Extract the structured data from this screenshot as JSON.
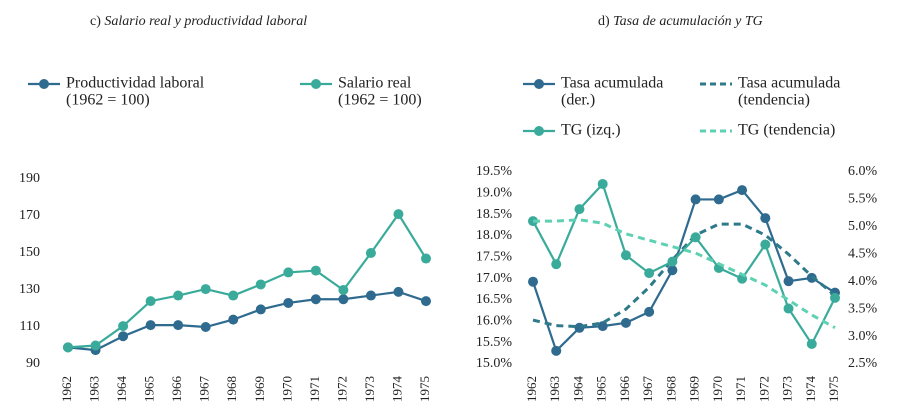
{
  "chart_data": [
    {
      "type": "line",
      "panel": "c)",
      "title": "Salario real y productividad laboral",
      "categories": [
        "1962",
        "1963",
        "1964",
        "1965",
        "1966",
        "1967",
        "1968",
        "1969",
        "1970",
        "1971",
        "1972",
        "1973",
        "1974",
        "1975"
      ],
      "ylim": [
        90,
        190
      ],
      "yticks": [
        90,
        110,
        130,
        150,
        170,
        190
      ],
      "series": [
        {
          "name": "Productividad laboral",
          "sublabel": "(1962 = 100)",
          "color": "#2f6a8f",
          "marker": "circle",
          "values": [
            99,
            97.5,
            105,
            111,
            111,
            110,
            114,
            119.5,
            123,
            125,
            125,
            127,
            129,
            124
          ]
        },
        {
          "name": "Salario real",
          "sublabel": "(1962 = 100)",
          "color": "#3aab9a",
          "marker": "circle",
          "values": [
            99,
            100,
            110.5,
            124,
            127,
            130.5,
            127,
            133,
            139.5,
            140.5,
            130,
            150,
            171,
            147
          ]
        }
      ]
    },
    {
      "type": "line",
      "panel": "d)",
      "title": "Tasa de acumulación y TG",
      "categories": [
        "1962",
        "1963",
        "1964",
        "1965",
        "1966",
        "1967",
        "1968",
        "1969",
        "1970",
        "1971",
        "1972",
        "1973",
        "1974",
        "1975"
      ],
      "ylim": [
        15,
        19.5
      ],
      "yticks": [
        {
          "value": 15,
          "label": "15.0%"
        },
        {
          "value": 15.5,
          "label": "15.5%"
        },
        {
          "value": 16,
          "label": "16.0%"
        },
        {
          "value": 16.5,
          "label": "16.5%"
        },
        {
          "value": 17,
          "label": "17.0%"
        },
        {
          "value": 17.5,
          "label": "17.5%"
        },
        {
          "value": 18,
          "label": "18.0%"
        },
        {
          "value": 18.5,
          "label": "18.5%"
        },
        {
          "value": 19,
          "label": "19.0%"
        },
        {
          "value": 19.5,
          "label": "19.5%"
        }
      ],
      "y2lim": [
        2.5,
        6
      ],
      "y2ticks": [
        {
          "value": 2.5,
          "label": "2.5%"
        },
        {
          "value": 3,
          "label": "3.0%"
        },
        {
          "value": 3.5,
          "label": "3.5%"
        },
        {
          "value": 4,
          "label": "4.0%"
        },
        {
          "value": 4.5,
          "label": "4.5%"
        },
        {
          "value": 5,
          "label": "5.0%"
        },
        {
          "value": 5.5,
          "label": "5.5%"
        },
        {
          "value": 6,
          "label": "6.0%"
        }
      ],
      "series": [
        {
          "name": "Tasa acumulada",
          "sublabel": "(der.)",
          "color": "#2f6a8f",
          "marker": "circle",
          "axis": "y2",
          "values": [
            4.0,
            2.74,
            3.16,
            3.19,
            3.25,
            3.45,
            4.21,
            5.5,
            5.5,
            5.67,
            5.16,
            4.01,
            4.07,
            3.8
          ]
        },
        {
          "name": "Tasa acumulada",
          "sublabel": "(tendencia)",
          "color": "#2f7a8a",
          "dashed": true,
          "axis": "y2",
          "values": [
            3.3,
            3.2,
            3.18,
            3.25,
            3.5,
            3.9,
            4.4,
            4.85,
            5.05,
            5.05,
            4.85,
            4.5,
            4.1,
            3.75
          ]
        },
        {
          "name": "TG (izq.)",
          "color": "#3aab9a",
          "marker": "circle",
          "values": [
            18.35,
            17.34,
            18.63,
            19.22,
            17.55,
            17.13,
            17.4,
            17.97,
            17.25,
            17.0,
            17.8,
            16.3,
            15.47,
            16.55
          ]
        },
        {
          "name": "TG (tendencia)",
          "color": "#5fd1b3",
          "dashed": true,
          "values": [
            18.35,
            18.35,
            18.38,
            18.3,
            18.05,
            17.9,
            17.75,
            17.6,
            17.35,
            17.1,
            16.85,
            16.5,
            16.15,
            15.85
          ]
        }
      ]
    }
  ]
}
